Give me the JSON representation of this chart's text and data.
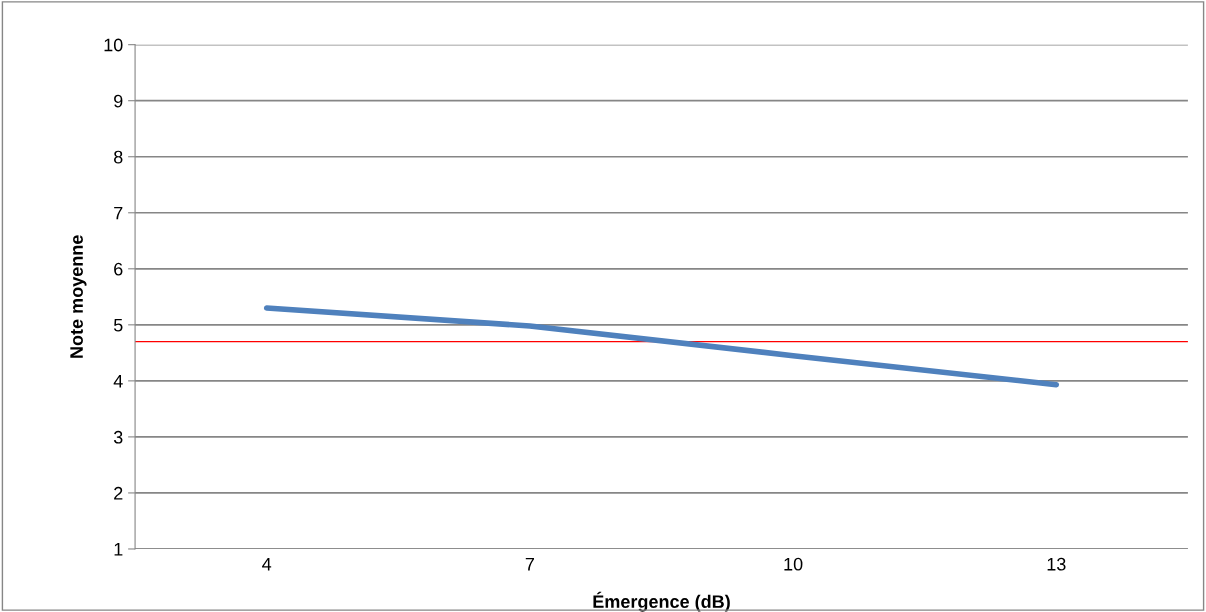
{
  "chart_data": {
    "type": "line",
    "xlabel": "Émergence (dB)",
    "ylabel": "Note moyenne",
    "categories": [
      "4",
      "7",
      "10",
      "13"
    ],
    "series": [
      {
        "color": "#4f81bd",
        "values": [
          5.3,
          4.98,
          4.45,
          3.93
        ]
      }
    ],
    "ylim": [
      1,
      10
    ],
    "yticks": [
      1,
      2,
      3,
      4,
      5,
      6,
      7,
      8,
      9,
      10
    ],
    "grid": "y",
    "legend": false,
    "marker": "none",
    "ref_lines": [
      {
        "axis": "y",
        "value": 4.7,
        "color": "#ff0000"
      }
    ]
  }
}
